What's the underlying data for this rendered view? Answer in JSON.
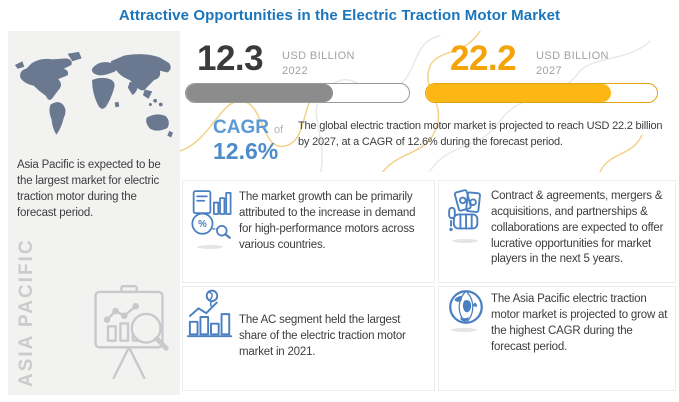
{
  "title": "Attractive Opportunities in the Electric Traction Motor Market",
  "left_panel": {
    "caption": "Asia Pacific is expected to be the largest market for electric traction motor during the forecast period.",
    "watermark": "ASIA PACIFIC"
  },
  "market_stats": {
    "current": {
      "value": "12.3",
      "unit": "USD BILLION",
      "year": "2022",
      "bar_pct": 66
    },
    "projected": {
      "value": "22.2",
      "unit": "USD BILLION",
      "year": "2027",
      "bar_pct": 80
    },
    "cagr_label": "CAGR",
    "cagr_of": "of",
    "cagr_value": "12.6%",
    "summary": "The global electric traction motor market is projected to reach USD 22.2 billion by 2027, at a CAGR of 12.6% during the forecast period."
  },
  "cards": [
    {
      "icon": "market-analysis-icon",
      "text": "The market growth can be primarily attributed to the increase in demand for high-performance motors across various countries."
    },
    {
      "icon": "hand-holding-money-icon",
      "text": "Contract & agreements, mergers & acquisitions, and partnerships & collaborations are expected to offer lucrative opportunities for market players in the next 5 years."
    },
    {
      "icon": "growth-bar-chart-icon",
      "text": "The AC segment held the largest share of the electric traction motor market in 2021."
    },
    {
      "icon": "globe-icon",
      "text": "The Asia Pacific electric traction motor market is projected to grow at the highest CAGR during the forecast period."
    }
  ],
  "colors": {
    "title_blue": "#1b75bb",
    "icon_blue": "#4a7fc1",
    "cagr_blue": "#5b9bd5",
    "amber_number": "#f3a40a",
    "amber_bar": "#fdb714",
    "gray_bar": "#8c8c8c",
    "panel_bg": "#f2f2f1",
    "map_slate": "#6a7990",
    "text_dark": "#3d3d3d",
    "text_gray": "#a2a2a2",
    "watermark_gray": "#cbcbcb"
  },
  "chart_data": {
    "type": "bar",
    "title": "Attractive Opportunities in the Electric Traction Motor Market",
    "categories": [
      "2022",
      "2027"
    ],
    "values": [
      12.3,
      22.2
    ],
    "ylabel": "USD Billion",
    "annotations": [
      "CAGR of 12.6% during the forecast period",
      "Largest region: Asia Pacific"
    ]
  }
}
